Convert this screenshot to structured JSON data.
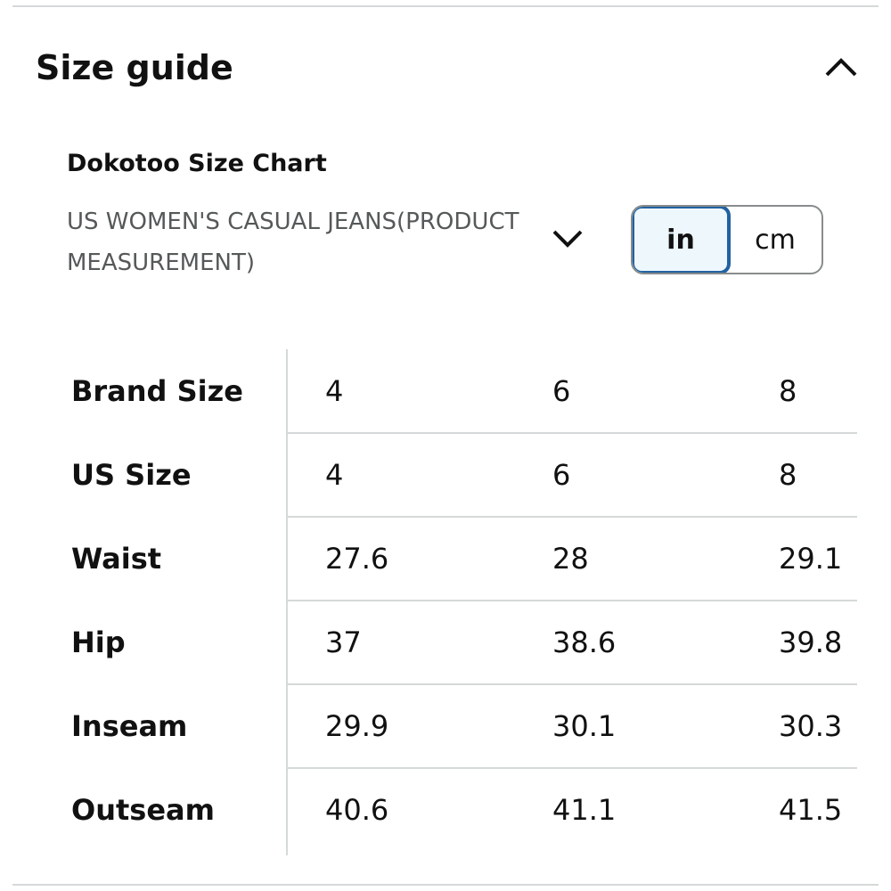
{
  "header": {
    "title": "Size guide"
  },
  "size_chart": {
    "brand": "Dokotoo Size Chart",
    "category": "US WOMEN'S CASUAL JEANS(PRODUCT MEASUREMENT)",
    "units": [
      "in",
      "cm"
    ],
    "selected_unit": 0
  },
  "table": {
    "rows": [
      [
        "Brand Size",
        "4",
        "6",
        "8"
      ],
      [
        "US Size",
        "4",
        "6",
        "8"
      ],
      [
        "Waist",
        "27.6",
        "28",
        "29.1"
      ],
      [
        "Hip",
        "37",
        "38.6",
        "39.8"
      ],
      [
        "Inseam",
        "29.9",
        "30.1",
        "30.3"
      ],
      [
        "Outseam",
        "40.6",
        "41.1",
        "41.5"
      ]
    ]
  }
}
